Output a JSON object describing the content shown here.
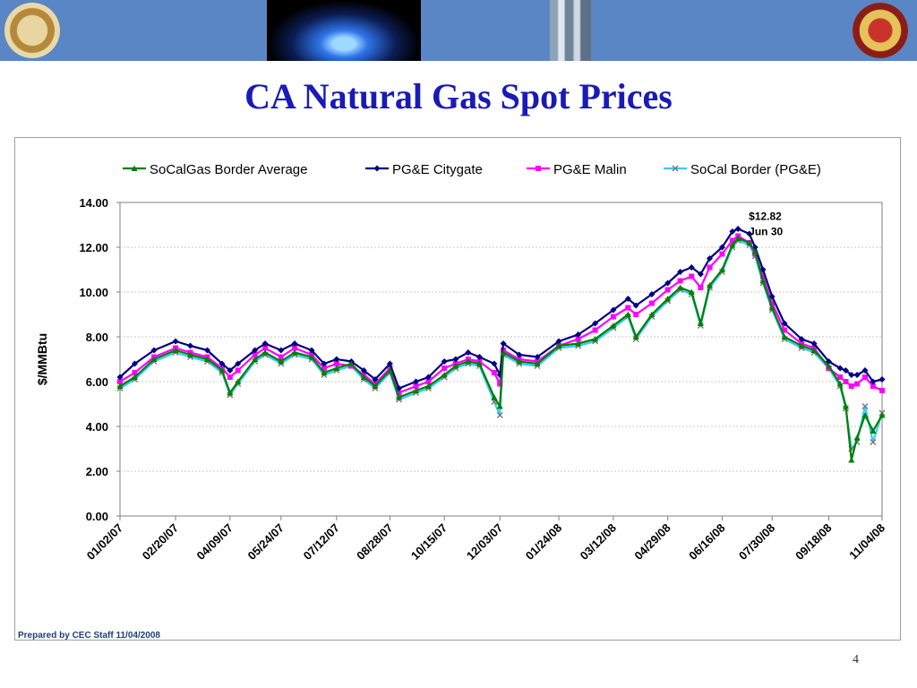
{
  "title": "CA Natural Gas Spot Prices",
  "footer_note": "Prepared by CEC Staff 11/04/2008",
  "page_number": "4",
  "chart_data": {
    "type": "line",
    "ylabel": "$/MMBtu",
    "ylim": [
      0,
      14
    ],
    "y_ticks": [
      "0.00",
      "2.00",
      "4.00",
      "6.00",
      "8.00",
      "10.00",
      "12.00",
      "14.00"
    ],
    "x_range": [
      "2007-01-02",
      "2008-11-04"
    ],
    "x_ticks": [
      "01/02/07",
      "02/20/07",
      "04/09/07",
      "05/24/07",
      "07/12/07",
      "08/28/07",
      "10/15/07",
      "12/03/07",
      "01/24/08",
      "03/12/08",
      "04/29/08",
      "06/16/08",
      "07/30/08",
      "09/18/08",
      "11/04/08"
    ],
    "grid": true,
    "legend_position": "top",
    "annotation": {
      "label": "$12.82",
      "sublabel": "Jun 30",
      "x": "2008-06-30",
      "y": 12.82
    },
    "series": [
      {
        "name": "SoCalGas Border Average",
        "color": "#008000",
        "marker": "triangle",
        "points": [
          [
            "2007-01-02",
            5.8
          ],
          [
            "2007-01-15",
            6.2
          ],
          [
            "2007-02-01",
            7.0
          ],
          [
            "2007-02-20",
            7.4
          ],
          [
            "2007-03-05",
            7.2
          ],
          [
            "2007-03-20",
            7.0
          ],
          [
            "2007-04-02",
            6.5
          ],
          [
            "2007-04-09",
            5.5
          ],
          [
            "2007-04-16",
            6.0
          ],
          [
            "2007-05-01",
            7.0
          ],
          [
            "2007-05-10",
            7.3
          ],
          [
            "2007-05-24",
            6.9
          ],
          [
            "2007-06-05",
            7.3
          ],
          [
            "2007-06-20",
            7.1
          ],
          [
            "2007-07-01",
            6.4
          ],
          [
            "2007-07-12",
            6.6
          ],
          [
            "2007-07-25",
            6.8
          ],
          [
            "2007-08-05",
            6.2
          ],
          [
            "2007-08-15",
            5.8
          ],
          [
            "2007-08-28",
            6.5
          ],
          [
            "2007-09-05",
            5.3
          ],
          [
            "2007-09-20",
            5.6
          ],
          [
            "2007-10-01",
            5.8
          ],
          [
            "2007-10-15",
            6.3
          ],
          [
            "2007-10-25",
            6.7
          ],
          [
            "2007-11-05",
            6.9
          ],
          [
            "2007-11-15",
            6.8
          ],
          [
            "2007-11-28",
            5.3
          ],
          [
            "2007-12-03",
            4.9
          ],
          [
            "2007-12-06",
            7.3
          ],
          [
            "2007-12-20",
            6.9
          ],
          [
            "2008-01-05",
            6.8
          ],
          [
            "2008-01-24",
            7.6
          ],
          [
            "2008-02-10",
            7.7
          ],
          [
            "2008-02-25",
            7.9
          ],
          [
            "2008-03-12",
            8.5
          ],
          [
            "2008-03-25",
            9.0
          ],
          [
            "2008-04-01",
            8.0
          ],
          [
            "2008-04-15",
            9.0
          ],
          [
            "2008-04-29",
            9.7
          ],
          [
            "2008-05-10",
            10.2
          ],
          [
            "2008-05-20",
            10.0
          ],
          [
            "2008-05-28",
            8.6
          ],
          [
            "2008-06-05",
            10.3
          ],
          [
            "2008-06-16",
            11.0
          ],
          [
            "2008-06-25",
            12.1
          ],
          [
            "2008-06-30",
            12.4
          ],
          [
            "2008-07-10",
            12.2
          ],
          [
            "2008-07-15",
            11.8
          ],
          [
            "2008-07-22",
            10.5
          ],
          [
            "2008-07-30",
            9.3
          ],
          [
            "2008-08-10",
            8.0
          ],
          [
            "2008-08-25",
            7.6
          ],
          [
            "2008-09-05",
            7.4
          ],
          [
            "2008-09-18",
            6.7
          ],
          [
            "2008-09-28",
            5.9
          ],
          [
            "2008-10-03",
            4.9
          ],
          [
            "2008-10-08",
            2.5
          ],
          [
            "2008-10-13",
            3.5
          ],
          [
            "2008-10-20",
            4.5
          ],
          [
            "2008-10-27",
            3.8
          ],
          [
            "2008-11-04",
            4.5
          ]
        ]
      },
      {
        "name": "PG&E Citygate",
        "color": "#000080",
        "marker": "diamond",
        "points": [
          [
            "2007-01-02",
            6.2
          ],
          [
            "2007-01-15",
            6.8
          ],
          [
            "2007-02-01",
            7.4
          ],
          [
            "2007-02-20",
            7.8
          ],
          [
            "2007-03-05",
            7.6
          ],
          [
            "2007-03-20",
            7.4
          ],
          [
            "2007-04-02",
            6.8
          ],
          [
            "2007-04-09",
            6.5
          ],
          [
            "2007-04-16",
            6.8
          ],
          [
            "2007-05-01",
            7.4
          ],
          [
            "2007-05-10",
            7.7
          ],
          [
            "2007-05-24",
            7.4
          ],
          [
            "2007-06-05",
            7.7
          ],
          [
            "2007-06-20",
            7.4
          ],
          [
            "2007-07-01",
            6.8
          ],
          [
            "2007-07-12",
            7.0
          ],
          [
            "2007-07-25",
            6.9
          ],
          [
            "2007-08-05",
            6.5
          ],
          [
            "2007-08-15",
            6.1
          ],
          [
            "2007-08-28",
            6.8
          ],
          [
            "2007-09-05",
            5.7
          ],
          [
            "2007-09-20",
            6.0
          ],
          [
            "2007-10-01",
            6.2
          ],
          [
            "2007-10-15",
            6.9
          ],
          [
            "2007-10-25",
            7.0
          ],
          [
            "2007-11-05",
            7.3
          ],
          [
            "2007-11-15",
            7.1
          ],
          [
            "2007-11-28",
            6.8
          ],
          [
            "2007-12-03",
            6.3
          ],
          [
            "2007-12-06",
            7.7
          ],
          [
            "2007-12-20",
            7.2
          ],
          [
            "2008-01-05",
            7.1
          ],
          [
            "2008-01-24",
            7.8
          ],
          [
            "2008-02-10",
            8.1
          ],
          [
            "2008-02-25",
            8.6
          ],
          [
            "2008-03-12",
            9.2
          ],
          [
            "2008-03-25",
            9.7
          ],
          [
            "2008-04-01",
            9.4
          ],
          [
            "2008-04-15",
            9.9
          ],
          [
            "2008-04-29",
            10.4
          ],
          [
            "2008-05-10",
            10.9
          ],
          [
            "2008-05-20",
            11.1
          ],
          [
            "2008-05-28",
            10.8
          ],
          [
            "2008-06-05",
            11.5
          ],
          [
            "2008-06-16",
            12.0
          ],
          [
            "2008-06-25",
            12.7
          ],
          [
            "2008-06-30",
            12.82
          ],
          [
            "2008-07-10",
            12.6
          ],
          [
            "2008-07-15",
            12.0
          ],
          [
            "2008-07-22",
            11.0
          ],
          [
            "2008-07-30",
            9.8
          ],
          [
            "2008-08-10",
            8.6
          ],
          [
            "2008-08-25",
            7.9
          ],
          [
            "2008-09-05",
            7.7
          ],
          [
            "2008-09-18",
            6.9
          ],
          [
            "2008-09-28",
            6.6
          ],
          [
            "2008-10-03",
            6.5
          ],
          [
            "2008-10-08",
            6.3
          ],
          [
            "2008-10-13",
            6.3
          ],
          [
            "2008-10-20",
            6.5
          ],
          [
            "2008-10-27",
            6.0
          ],
          [
            "2008-11-04",
            6.1
          ]
        ]
      },
      {
        "name": "PG&E Malin",
        "color": "#ff00ff",
        "marker": "square",
        "points": [
          [
            "2007-01-02",
            6.0
          ],
          [
            "2007-01-15",
            6.4
          ],
          [
            "2007-02-01",
            7.1
          ],
          [
            "2007-02-20",
            7.5
          ],
          [
            "2007-03-05",
            7.3
          ],
          [
            "2007-03-20",
            7.1
          ],
          [
            "2007-04-02",
            6.6
          ],
          [
            "2007-04-09",
            6.2
          ],
          [
            "2007-04-16",
            6.5
          ],
          [
            "2007-05-01",
            7.2
          ],
          [
            "2007-05-10",
            7.5
          ],
          [
            "2007-05-24",
            7.1
          ],
          [
            "2007-06-05",
            7.5
          ],
          [
            "2007-06-20",
            7.2
          ],
          [
            "2007-07-01",
            6.6
          ],
          [
            "2007-07-12",
            6.8
          ],
          [
            "2007-07-25",
            6.7
          ],
          [
            "2007-08-05",
            6.3
          ],
          [
            "2007-08-15",
            5.9
          ],
          [
            "2007-08-28",
            6.6
          ],
          [
            "2007-09-05",
            5.5
          ],
          [
            "2007-09-20",
            5.8
          ],
          [
            "2007-10-01",
            6.0
          ],
          [
            "2007-10-15",
            6.6
          ],
          [
            "2007-10-25",
            6.8
          ],
          [
            "2007-11-05",
            7.0
          ],
          [
            "2007-11-15",
            6.9
          ],
          [
            "2007-11-28",
            6.4
          ],
          [
            "2007-12-03",
            5.9
          ],
          [
            "2007-12-06",
            7.4
          ],
          [
            "2007-12-20",
            7.0
          ],
          [
            "2008-01-05",
            6.9
          ],
          [
            "2008-01-24",
            7.6
          ],
          [
            "2008-02-10",
            7.9
          ],
          [
            "2008-02-25",
            8.3
          ],
          [
            "2008-03-12",
            8.9
          ],
          [
            "2008-03-25",
            9.3
          ],
          [
            "2008-04-01",
            9.0
          ],
          [
            "2008-04-15",
            9.5
          ],
          [
            "2008-04-29",
            10.1
          ],
          [
            "2008-05-10",
            10.5
          ],
          [
            "2008-05-20",
            10.7
          ],
          [
            "2008-05-28",
            10.2
          ],
          [
            "2008-06-05",
            11.1
          ],
          [
            "2008-06-16",
            11.7
          ],
          [
            "2008-06-25",
            12.3
          ],
          [
            "2008-06-30",
            12.5
          ],
          [
            "2008-07-10",
            12.2
          ],
          [
            "2008-07-15",
            11.7
          ],
          [
            "2008-07-22",
            10.7
          ],
          [
            "2008-07-30",
            9.5
          ],
          [
            "2008-08-10",
            8.3
          ],
          [
            "2008-08-25",
            7.7
          ],
          [
            "2008-09-05",
            7.5
          ],
          [
            "2008-09-18",
            6.6
          ],
          [
            "2008-09-28",
            6.2
          ],
          [
            "2008-10-03",
            6.0
          ],
          [
            "2008-10-08",
            5.8
          ],
          [
            "2008-10-13",
            5.9
          ],
          [
            "2008-10-20",
            6.2
          ],
          [
            "2008-10-27",
            5.8
          ],
          [
            "2008-11-04",
            5.6
          ]
        ]
      },
      {
        "name": "SoCal Border (PG&E)",
        "color": "#33ccff",
        "marker": "x",
        "points": [
          [
            "2007-01-02",
            5.7
          ],
          [
            "2007-01-15",
            6.1
          ],
          [
            "2007-02-01",
            6.9
          ],
          [
            "2007-02-20",
            7.3
          ],
          [
            "2007-03-05",
            7.1
          ],
          [
            "2007-03-20",
            6.9
          ],
          [
            "2007-04-02",
            6.4
          ],
          [
            "2007-04-09",
            5.4
          ],
          [
            "2007-04-16",
            5.9
          ],
          [
            "2007-05-01",
            6.9
          ],
          [
            "2007-05-10",
            7.2
          ],
          [
            "2007-05-24",
            6.8
          ],
          [
            "2007-06-05",
            7.2
          ],
          [
            "2007-06-20",
            7.0
          ],
          [
            "2007-07-01",
            6.3
          ],
          [
            "2007-07-12",
            6.5
          ],
          [
            "2007-07-25",
            6.7
          ],
          [
            "2007-08-05",
            6.1
          ],
          [
            "2007-08-15",
            5.7
          ],
          [
            "2007-08-28",
            6.4
          ],
          [
            "2007-09-05",
            5.2
          ],
          [
            "2007-09-20",
            5.5
          ],
          [
            "2007-10-01",
            5.7
          ],
          [
            "2007-10-15",
            6.2
          ],
          [
            "2007-10-25",
            6.6
          ],
          [
            "2007-11-05",
            6.8
          ],
          [
            "2007-11-15",
            6.7
          ],
          [
            "2007-11-28",
            5.1
          ],
          [
            "2007-12-03",
            4.5
          ],
          [
            "2007-12-06",
            7.2
          ],
          [
            "2007-12-20",
            6.8
          ],
          [
            "2008-01-05",
            6.7
          ],
          [
            "2008-01-24",
            7.5
          ],
          [
            "2008-02-10",
            7.6
          ],
          [
            "2008-02-25",
            7.8
          ],
          [
            "2008-03-12",
            8.4
          ],
          [
            "2008-03-25",
            8.9
          ],
          [
            "2008-04-01",
            7.9
          ],
          [
            "2008-04-15",
            8.9
          ],
          [
            "2008-04-29",
            9.6
          ],
          [
            "2008-05-10",
            10.1
          ],
          [
            "2008-05-20",
            9.9
          ],
          [
            "2008-05-28",
            8.5
          ],
          [
            "2008-06-05",
            10.2
          ],
          [
            "2008-06-16",
            10.9
          ],
          [
            "2008-06-25",
            12.0
          ],
          [
            "2008-06-30",
            12.3
          ],
          [
            "2008-07-10",
            12.1
          ],
          [
            "2008-07-15",
            11.6
          ],
          [
            "2008-07-22",
            10.4
          ],
          [
            "2008-07-30",
            9.2
          ],
          [
            "2008-08-10",
            7.9
          ],
          [
            "2008-08-25",
            7.5
          ],
          [
            "2008-09-05",
            7.3
          ],
          [
            "2008-09-18",
            6.6
          ],
          [
            "2008-09-28",
            5.8
          ],
          [
            "2008-10-03",
            4.8
          ],
          [
            "2008-10-08",
            3.0
          ],
          [
            "2008-10-13",
            3.3
          ],
          [
            "2008-10-20",
            4.9
          ],
          [
            "2008-10-27",
            3.3
          ],
          [
            "2008-11-04",
            4.6
          ]
        ]
      }
    ]
  }
}
